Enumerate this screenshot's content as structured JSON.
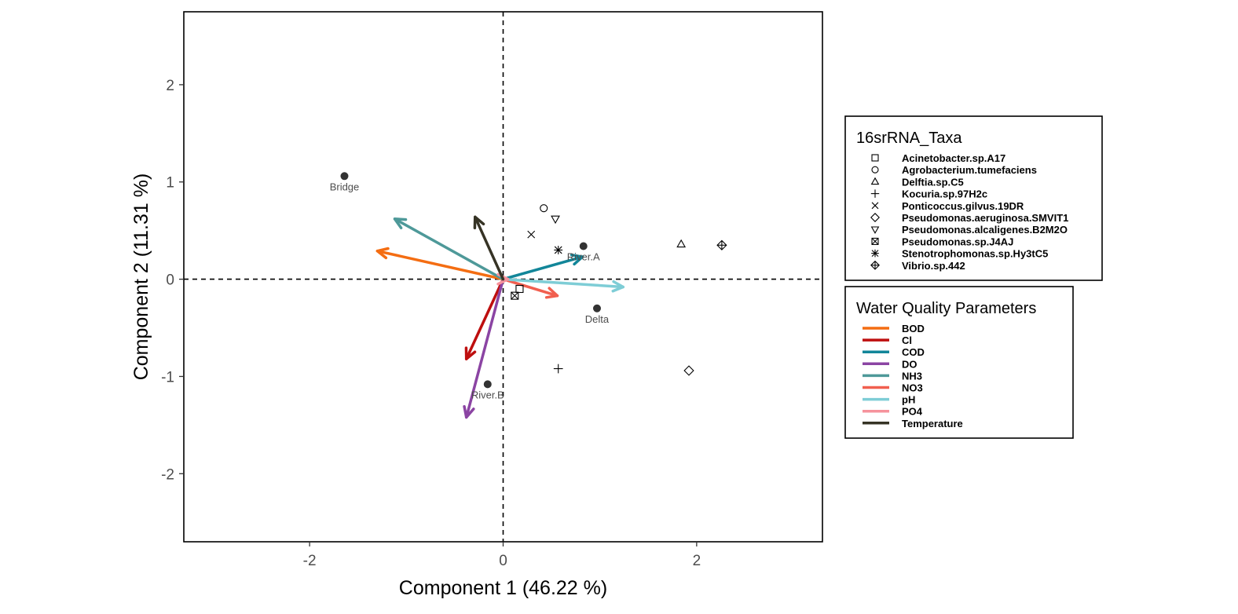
{
  "chart_data": {
    "type": "scatter",
    "title": "",
    "xlabel": "Component 1 (46.22 %)",
    "ylabel": "Component 2 (11.31 %)",
    "xlim": [
      -3.3,
      3.3
    ],
    "ylim": [
      -2.7,
      2.75
    ],
    "xticks": [
      -2,
      0,
      2
    ],
    "yticks": [
      -2,
      -1,
      0,
      1,
      2
    ],
    "reference_lines": {
      "x": 0,
      "y": 0,
      "style": "dashed"
    },
    "sites": [
      {
        "label": "Bridge",
        "x": -1.64,
        "y": 1.06
      },
      {
        "label": "River.A",
        "x": 0.83,
        "y": 0.34
      },
      {
        "label": "Delta",
        "x": 0.97,
        "y": -0.3
      },
      {
        "label": "River.B",
        "x": -0.16,
        "y": -1.08
      }
    ],
    "taxa_legend_title": "16srRNA_Taxa",
    "taxa": [
      {
        "name": "Acinetobacter.sp.A17",
        "symbol": "square",
        "x": 0.17,
        "y": -0.1
      },
      {
        "name": "Agrobacterium.tumefaciens",
        "symbol": "circle",
        "x": 0.42,
        "y": 0.73
      },
      {
        "name": "Delftia.sp.C5",
        "symbol": "triangle-up",
        "x": 1.84,
        "y": 0.36
      },
      {
        "name": "Kocuria.sp.97H2c",
        "symbol": "plus",
        "x": 0.57,
        "y": -0.92
      },
      {
        "name": "Ponticoccus.gilvus.19DR",
        "symbol": "cross",
        "x": 0.29,
        "y": 0.46
      },
      {
        "name": "Pseudomonas.aeruginosa.SMVIT1",
        "symbol": "diamond",
        "x": 1.92,
        "y": -0.94
      },
      {
        "name": "Pseudomonas.alcaligenes.B2M2O",
        "symbol": "triangle-down",
        "x": 0.54,
        "y": 0.62
      },
      {
        "name": "Pseudomonas.sp.J4AJ",
        "symbol": "square-cross",
        "x": 0.12,
        "y": -0.17
      },
      {
        "name": "Stenotrophomonas.sp.Hy3tC5",
        "symbol": "asterisk",
        "x": 0.57,
        "y": 0.3
      },
      {
        "name": "Vibrio.sp.442",
        "symbol": "diamond-plus",
        "x": 2.26,
        "y": 0.35
      }
    ],
    "parameters_legend_title": "Water Quality Parameters",
    "parameters": [
      {
        "name": "BOD",
        "color": "#F46D12",
        "x": -1.3,
        "y": 0.29
      },
      {
        "name": "Cl",
        "color": "#BE0F0F",
        "x": -0.38,
        "y": -0.82
      },
      {
        "name": "COD",
        "color": "#128699",
        "x": 0.82,
        "y": 0.23
      },
      {
        "name": "DO",
        "color": "#8B44A3",
        "x": -0.38,
        "y": -1.42
      },
      {
        "name": "NH3",
        "color": "#4E9999",
        "x": -1.12,
        "y": 0.62
      },
      {
        "name": "NO3",
        "color": "#F15F4F",
        "x": 0.56,
        "y": -0.17
      },
      {
        "name": "pH",
        "color": "#7ECDD6",
        "x": 1.24,
        "y": -0.08
      },
      {
        "name": "PO4",
        "color": "#F6939C",
        "x": 0.05,
        "y": 0.0
      },
      {
        "name": "Temperature",
        "color": "#363325",
        "x": -0.29,
        "y": 0.64
      }
    ]
  }
}
